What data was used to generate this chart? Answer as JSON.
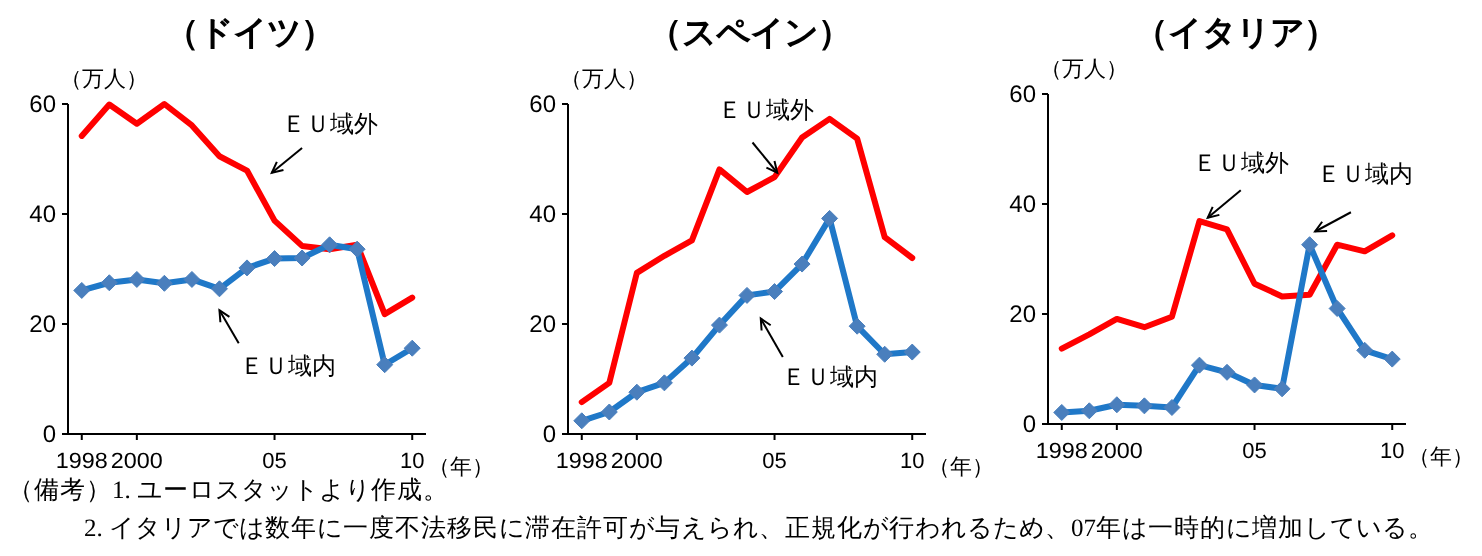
{
  "chart_data": [
    {
      "type": "line",
      "title": "（ドイツ）",
      "ylabel": "（万人）",
      "xlabel": "（年）",
      "x": [
        1998,
        1999,
        2000,
        2001,
        2002,
        2003,
        2004,
        2005,
        2006,
        2007,
        2008,
        2009,
        2010
      ],
      "xlim": [
        1997.5,
        2010.5
      ],
      "xticks": [
        {
          "value": 1998,
          "label": "1998"
        },
        {
          "value": 2000,
          "label": "2000"
        },
        {
          "value": 2005,
          "label": "05"
        },
        {
          "value": 2010,
          "label": "10"
        }
      ],
      "ylim": [
        0,
        60
      ],
      "yticks": [
        0,
        20,
        40,
        60
      ],
      "grid": false,
      "legend": false,
      "series": [
        {
          "name": "ＥＵ域外",
          "color": "#ff0000",
          "marker": "none",
          "values": [
            54.2,
            59.9,
            56.4,
            60.0,
            56.1,
            50.5,
            47.9,
            38.8,
            34.2,
            33.6,
            34.4,
            21.8,
            24.8
          ]
        },
        {
          "name": "ＥＵ域内",
          "color": "#1f78c8",
          "marker": "diamond",
          "values": [
            26.1,
            27.5,
            28.1,
            27.4,
            28.1,
            26.4,
            30.2,
            31.9,
            32.0,
            34.4,
            33.6,
            12.6,
            15.6
          ]
        }
      ],
      "annotations": [
        "（備考）1. ユーロスタットより作成。",
        "2. イタリアでは数年に一度不法移民に滞在許可が与えられ、正規化が行われるため、07年は一時的に増加している。"
      ]
    },
    {
      "type": "line",
      "title": "（スペイン）",
      "ylabel": "（万人）",
      "xlabel": "（年）",
      "x": [
        1998,
        1999,
        2000,
        2001,
        2002,
        2003,
        2004,
        2005,
        2006,
        2007,
        2008,
        2009,
        2010
      ],
      "xlim": [
        1997.5,
        2010.5
      ],
      "xticks": [
        {
          "value": 1998,
          "label": "1998"
        },
        {
          "value": 2000,
          "label": "2000"
        },
        {
          "value": 2005,
          "label": "05"
        },
        {
          "value": 2010,
          "label": "10"
        }
      ],
      "ylim": [
        0,
        60
      ],
      "yticks": [
        0,
        20,
        40,
        60
      ],
      "grid": false,
      "legend": false,
      "series": [
        {
          "name": "ＥＵ域外",
          "color": "#ff0000",
          "marker": "none",
          "values": [
            5.8,
            9.3,
            29.3,
            32.4,
            35.2,
            48.1,
            44.0,
            46.7,
            53.9,
            57.3,
            53.7,
            35.8,
            32.0
          ]
        },
        {
          "name": "ＥＵ域内",
          "color": "#1f78c8",
          "marker": "diamond",
          "values": [
            2.4,
            4.0,
            7.6,
            9.3,
            13.8,
            19.8,
            25.2,
            25.9,
            30.9,
            39.2,
            19.6,
            14.5,
            14.9
          ]
        }
      ]
    },
    {
      "type": "line",
      "title": "（イタリア）",
      "ylabel": "（万人）",
      "xlabel": "（年）",
      "x": [
        1998,
        1999,
        2000,
        2001,
        2002,
        2003,
        2004,
        2005,
        2006,
        2007,
        2008,
        2009,
        2010
      ],
      "xlim": [
        1997.5,
        2010.5
      ],
      "xticks": [
        {
          "value": 1998,
          "label": "1998"
        },
        {
          "value": 2000,
          "label": "2000"
        },
        {
          "value": 2005,
          "label": "05"
        },
        {
          "value": 2010,
          "label": "10"
        }
      ],
      "ylim": [
        0,
        60
      ],
      "yticks": [
        0,
        20,
        40,
        60
      ],
      "grid": false,
      "legend": false,
      "series": [
        {
          "name": "ＥＵ域外",
          "color": "#ff0000",
          "marker": "none",
          "values": [
            13.7,
            16.3,
            19.1,
            17.6,
            19.5,
            36.9,
            35.4,
            25.5,
            23.2,
            23.5,
            32.6,
            31.4,
            34.3
          ]
        },
        {
          "name": "ＥＵ域内",
          "color": "#1f78c8",
          "marker": "diamond",
          "values": [
            2.1,
            2.4,
            3.5,
            3.3,
            3.0,
            10.7,
            9.4,
            7.1,
            6.4,
            32.6,
            21.0,
            13.4,
            11.8
          ]
        }
      ]
    }
  ]
}
